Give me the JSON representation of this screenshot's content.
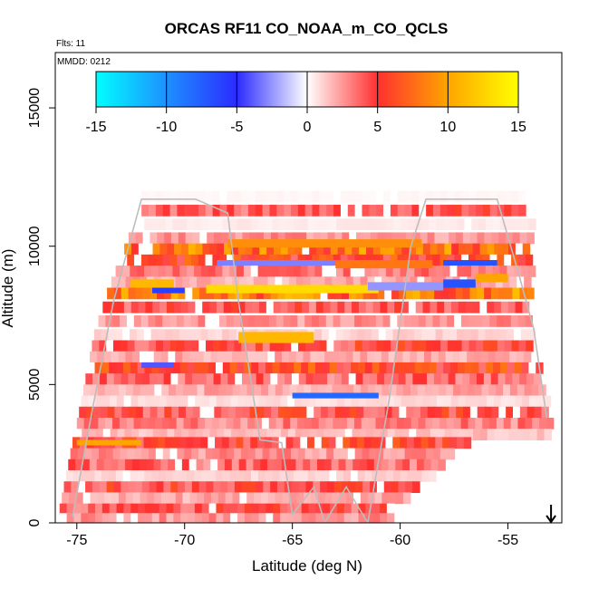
{
  "chart_data": {
    "type": "heatmap",
    "title": "ORCAS RF11 CO_NOAA_m_CO_QCLS",
    "annotations": [
      "Flts: 11",
      "MMDD: 0212"
    ],
    "xlabel": "Latitude (deg N)",
    "ylabel": "Altitude (m)",
    "xlim": [
      -76.0,
      -52.5
    ],
    "ylim": [
      0,
      17000
    ],
    "x_ticks": [
      -75,
      -70,
      -65,
      -60,
      -55
    ],
    "x_tick_labels": [
      "-75",
      "-70",
      "-65",
      "-60",
      "-55"
    ],
    "y_ticks": [
      0,
      5000,
      10000,
      15000
    ],
    "y_tick_labels": [
      "0",
      "5000",
      "10000",
      "15000"
    ],
    "grid": false,
    "colorbar": {
      "placement": "top",
      "min": -15,
      "max": 15,
      "ticks": [
        -15,
        -10,
        -5,
        0,
        5,
        10,
        15
      ],
      "tick_labels": [
        "-15",
        "-10",
        "-5",
        "0",
        "5",
        "10",
        "15"
      ],
      "colors": [
        "#00ffff",
        "#1e90ff",
        "#2b2bff",
        "#ffffff",
        "#ff3030",
        "#ffa500",
        "#ffff00"
      ]
    },
    "colors": {
      "track": "#bdbdbd"
    },
    "bands": [
      {
        "alt": 11800,
        "lat_min": -72.0,
        "lat_max": -54.2,
        "value": 0.2
      },
      {
        "alt": 11300,
        "lat_min": -72.0,
        "lat_max": -54.2,
        "value": 4.0
      },
      {
        "alt": 10800,
        "lat_min": -72.2,
        "lat_max": -54.0,
        "value": 0.5
      },
      {
        "alt": 10300,
        "lat_min": -72.6,
        "lat_max": -54.0,
        "value": 2.5
      },
      {
        "alt": 9900,
        "lat_min": -72.8,
        "lat_max": -54.0,
        "value": 7.5
      },
      {
        "alt": 9500,
        "lat_min": -73.0,
        "lat_max": -54.0,
        "value": 5.5
      },
      {
        "alt": 9100,
        "lat_min": -73.2,
        "lat_max": -54.0,
        "value": 3.0
      },
      {
        "alt": 8700,
        "lat_min": -73.4,
        "lat_max": -54.0,
        "value": 2.0
      },
      {
        "alt": 8300,
        "lat_min": -73.6,
        "lat_max": -54.0,
        "value": 8.0
      },
      {
        "alt": 7800,
        "lat_min": -73.8,
        "lat_max": -54.0,
        "value": 4.0
      },
      {
        "alt": 7300,
        "lat_min": -74.0,
        "lat_max": -54.0,
        "value": 2.5
      },
      {
        "alt": 6800,
        "lat_min": -74.2,
        "lat_max": -54.0,
        "value": 1.0
      },
      {
        "alt": 6400,
        "lat_min": -74.3,
        "lat_max": -54.0,
        "value": 4.5
      },
      {
        "alt": 6000,
        "lat_min": -74.4,
        "lat_max": -54.0,
        "value": 2.0
      },
      {
        "alt": 5600,
        "lat_min": -74.5,
        "lat_max": -53.5,
        "value": 5.5
      },
      {
        "alt": 5200,
        "lat_min": -74.6,
        "lat_max": -53.5,
        "value": 3.5
      },
      {
        "alt": 4800,
        "lat_min": -74.7,
        "lat_max": -53.3,
        "value": 2.0
      },
      {
        "alt": 4400,
        "lat_min": -74.8,
        "lat_max": -53.3,
        "value": 0.8
      },
      {
        "alt": 4000,
        "lat_min": -74.9,
        "lat_max": -53.2,
        "value": 4.5
      },
      {
        "alt": 3600,
        "lat_min": -75.0,
        "lat_max": -53.2,
        "value": 3.0
      },
      {
        "alt": 3200,
        "lat_min": -75.1,
        "lat_max": -53.2,
        "value": 1.5
      },
      {
        "alt": 2900,
        "lat_min": -75.2,
        "lat_max": -57.0,
        "value": 5.0
      },
      {
        "alt": 2500,
        "lat_min": -75.3,
        "lat_max": -57.5,
        "value": 2.5
      },
      {
        "alt": 2100,
        "lat_min": -75.4,
        "lat_max": -58.0,
        "value": 3.5
      },
      {
        "alt": 1700,
        "lat_min": -75.5,
        "lat_max": -58.6,
        "value": 1.0
      },
      {
        "alt": 1300,
        "lat_min": -75.6,
        "lat_max": -59.2,
        "value": 4.5
      },
      {
        "alt": 900,
        "lat_min": -75.7,
        "lat_max": -59.8,
        "value": 2.0
      },
      {
        "alt": 500,
        "lat_min": -75.8,
        "lat_max": -60.3,
        "value": 4.0
      },
      {
        "alt": 150,
        "lat_min": -75.8,
        "lat_max": -60.6,
        "value": 2.5
      }
    ],
    "features": [
      {
        "lat_min": -68.0,
        "lat_max": -59.0,
        "alt_min": 9950,
        "alt_max": 10250,
        "value": 9.0
      },
      {
        "lat_min": -68.5,
        "lat_max": -63.0,
        "alt_min": 9300,
        "alt_max": 9500,
        "value": -3.0
      },
      {
        "lat_min": -63.0,
        "lat_max": -58.5,
        "alt_min": 9200,
        "alt_max": 9500,
        "value": 8.0
      },
      {
        "lat_min": -58.0,
        "lat_max": -55.5,
        "alt_min": 9300,
        "alt_max": 9500,
        "value": -7.0
      },
      {
        "lat_min": -72.5,
        "lat_max": -70.5,
        "alt_min": 8500,
        "alt_max": 8800,
        "value": 11.0
      },
      {
        "lat_min": -71.5,
        "lat_max": -70.0,
        "alt_min": 8300,
        "alt_max": 8500,
        "value": -6.0
      },
      {
        "lat_min": -69.0,
        "lat_max": -61.0,
        "alt_min": 8300,
        "alt_max": 8600,
        "value": 13.0
      },
      {
        "lat_min": -61.5,
        "lat_max": -58.0,
        "alt_min": 8400,
        "alt_max": 8700,
        "value": -2.5
      },
      {
        "lat_min": -58.0,
        "lat_max": -56.5,
        "alt_min": 8500,
        "alt_max": 8800,
        "value": -7.0
      },
      {
        "lat_min": -56.5,
        "lat_max": -55.0,
        "alt_min": 8700,
        "alt_max": 9000,
        "value": 10.0
      },
      {
        "lat_min": -67.5,
        "lat_max": -64.0,
        "alt_min": 6500,
        "alt_max": 6900,
        "value": 11.0
      },
      {
        "lat_min": -72.0,
        "lat_max": -70.5,
        "alt_min": 5600,
        "alt_max": 5800,
        "value": -4.0
      },
      {
        "lat_min": -65.0,
        "lat_max": -61.0,
        "alt_min": 4500,
        "alt_max": 4700,
        "value": -8.0
      },
      {
        "lat_min": -75.0,
        "lat_max": -72.0,
        "alt_min": 2800,
        "alt_max": 3000,
        "value": 10.0
      }
    ],
    "flight_track": [
      [
        -75.2,
        200
      ],
      [
        -74.3,
        4000
      ],
      [
        -73.3,
        8000
      ],
      [
        -72.0,
        11700
      ],
      [
        -69.5,
        11700
      ],
      [
        -68.0,
        11200
      ],
      [
        -67.5,
        8000
      ],
      [
        -66.5,
        3000
      ],
      [
        -65.5,
        2900
      ],
      [
        -65.0,
        300
      ],
      [
        -64.0,
        1300
      ],
      [
        -63.5,
        0
      ],
      [
        -62.5,
        1300
      ],
      [
        -61.5,
        0
      ],
      [
        -60.5,
        4500
      ],
      [
        -59.5,
        10000
      ],
      [
        -58.8,
        11700
      ],
      [
        -55.5,
        11700
      ],
      [
        -54.5,
        9000
      ],
      [
        -53.8,
        7000
      ],
      [
        -53.2,
        3800
      ]
    ],
    "marker": {
      "type": "arrow-down",
      "lat": -53.0,
      "alt": 0
    }
  }
}
